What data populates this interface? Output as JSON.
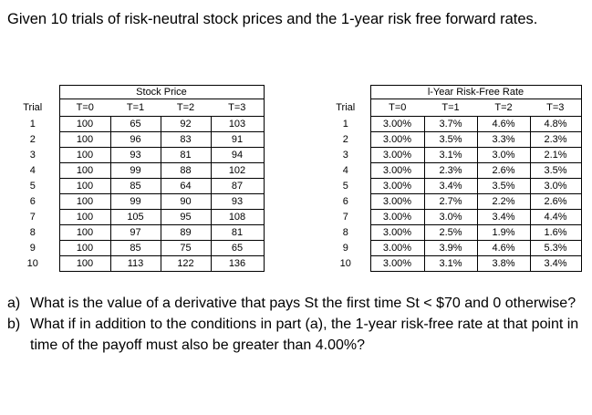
{
  "intro": "Given 10 trials of risk-neutral stock prices and the 1-year risk free forward rates.",
  "price_table": {
    "group_title": "Stock Price",
    "trial_header": "Trial",
    "columns": [
      "T=0",
      "T=1",
      "T=2",
      "T=3"
    ],
    "rows": [
      {
        "trial": "1",
        "values": [
          "100",
          "65",
          "92",
          "103"
        ]
      },
      {
        "trial": "2",
        "values": [
          "100",
          "96",
          "83",
          "91"
        ]
      },
      {
        "trial": "3",
        "values": [
          "100",
          "93",
          "81",
          "94"
        ]
      },
      {
        "trial": "4",
        "values": [
          "100",
          "99",
          "88",
          "102"
        ]
      },
      {
        "trial": "5",
        "values": [
          "100",
          "85",
          "64",
          "87"
        ]
      },
      {
        "trial": "6",
        "values": [
          "100",
          "99",
          "90",
          "93"
        ]
      },
      {
        "trial": "7",
        "values": [
          "100",
          "105",
          "95",
          "108"
        ]
      },
      {
        "trial": "8",
        "values": [
          "100",
          "97",
          "89",
          "81"
        ]
      },
      {
        "trial": "9",
        "values": [
          "100",
          "85",
          "75",
          "65"
        ]
      },
      {
        "trial": "10",
        "values": [
          "100",
          "113",
          "122",
          "136"
        ]
      }
    ]
  },
  "rate_table": {
    "group_title": "l-Year Risk-Free Rate",
    "trial_header": "Trial",
    "columns": [
      "T=0",
      "T=1",
      "T=2",
      "T=3"
    ],
    "rows": [
      {
        "trial": "1",
        "values": [
          "3.00%",
          "3.7%",
          "4.6%",
          "4.8%"
        ]
      },
      {
        "trial": "2",
        "values": [
          "3.00%",
          "3.5%",
          "3.3%",
          "2.3%"
        ]
      },
      {
        "trial": "3",
        "values": [
          "3.00%",
          "3.1%",
          "3.0%",
          "2.1%"
        ]
      },
      {
        "trial": "4",
        "values": [
          "3.00%",
          "2.3%",
          "2.6%",
          "3.5%"
        ]
      },
      {
        "trial": "5",
        "values": [
          "3.00%",
          "3.4%",
          "3.5%",
          "3.0%"
        ]
      },
      {
        "trial": "6",
        "values": [
          "3.00%",
          "2.7%",
          "2.2%",
          "2.6%"
        ]
      },
      {
        "trial": "7",
        "values": [
          "3.00%",
          "3.0%",
          "3.4%",
          "4.4%"
        ]
      },
      {
        "trial": "8",
        "values": [
          "3.00%",
          "2.5%",
          "1.9%",
          "1.6%"
        ]
      },
      {
        "trial": "9",
        "values": [
          "3.00%",
          "3.9%",
          "4.6%",
          "5.3%"
        ]
      },
      {
        "trial": "10",
        "values": [
          "3.00%",
          "3.1%",
          "3.8%",
          "3.4%"
        ]
      }
    ]
  },
  "questions": [
    {
      "marker": "a)",
      "text": "What is the value of a derivative that pays St the first time St < $70 and 0 otherwise?"
    },
    {
      "marker": "b)",
      "text": "What if in addition to the conditions in part (a), the 1-year risk-free rate at that point in time of the payoff must also be greater than 4.00%?"
    }
  ]
}
